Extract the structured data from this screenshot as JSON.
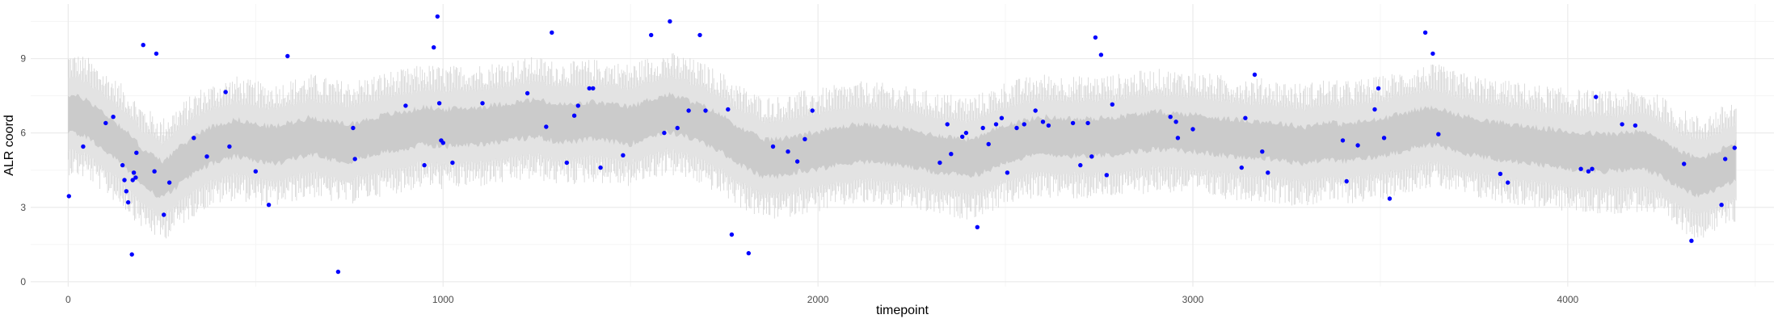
{
  "chart_data": {
    "type": "scatter",
    "xlabel": "timepoint",
    "ylabel": "ALR coord",
    "xlim": [
      -100,
      4550
    ],
    "ylim": [
      -0.2,
      11.2
    ],
    "x_ticks": [
      0,
      1000,
      2000,
      3000,
      4000
    ],
    "y_ticks": [
      0,
      3,
      6,
      9
    ],
    "grid": true,
    "colors": {
      "points": "#0000ff",
      "outer_band": "#e3e3e3",
      "inner_band": "#cbcbcb",
      "raw_band": "#d3d3d3",
      "grid_major": "#ebebeb",
      "grid_minor": "#f5f5f5"
    },
    "band_center": [
      [
        0,
        6.8
      ],
      [
        50,
        6.6
      ],
      [
        100,
        6.0
      ],
      [
        150,
        5.4
      ],
      [
        200,
        4.6
      ],
      [
        250,
        4.1
      ],
      [
        300,
        4.7
      ],
      [
        350,
        5.3
      ],
      [
        400,
        5.6
      ],
      [
        450,
        5.8
      ],
      [
        500,
        5.6
      ],
      [
        550,
        5.5
      ],
      [
        600,
        5.7
      ],
      [
        650,
        5.9
      ],
      [
        700,
        5.7
      ],
      [
        750,
        5.6
      ],
      [
        800,
        5.8
      ],
      [
        850,
        6.0
      ],
      [
        900,
        6.1
      ],
      [
        950,
        6.3
      ],
      [
        1000,
        6.2
      ],
      [
        1100,
        6.3
      ],
      [
        1200,
        6.5
      ],
      [
        1250,
        6.6
      ],
      [
        1300,
        6.4
      ],
      [
        1350,
        6.4
      ],
      [
        1400,
        6.5
      ],
      [
        1450,
        6.4
      ],
      [
        1500,
        6.3
      ],
      [
        1550,
        6.6
      ],
      [
        1600,
        6.8
      ],
      [
        1650,
        6.6
      ],
      [
        1700,
        6.3
      ],
      [
        1750,
        5.9
      ],
      [
        1800,
        5.4
      ],
      [
        1850,
        5.0
      ],
      [
        1900,
        5.0
      ],
      [
        1950,
        5.2
      ],
      [
        2000,
        5.3
      ],
      [
        2100,
        5.6
      ],
      [
        2200,
        5.5
      ],
      [
        2300,
        5.2
      ],
      [
        2400,
        5.0
      ],
      [
        2450,
        5.2
      ],
      [
        2500,
        5.6
      ],
      [
        2600,
        5.9
      ],
      [
        2700,
        5.8
      ],
      [
        2800,
        5.9
      ],
      [
        2900,
        6.1
      ],
      [
        3000,
        6.0
      ],
      [
        3050,
        5.9
      ],
      [
        3100,
        5.8
      ],
      [
        3200,
        5.7
      ],
      [
        3300,
        5.5
      ],
      [
        3350,
        5.7
      ],
      [
        3400,
        5.6
      ],
      [
        3500,
        5.8
      ],
      [
        3600,
        6.2
      ],
      [
        3650,
        6.3
      ],
      [
        3700,
        6.0
      ],
      [
        3800,
        5.7
      ],
      [
        3900,
        5.5
      ],
      [
        4000,
        5.3
      ],
      [
        4100,
        5.2
      ],
      [
        4200,
        5.3
      ],
      [
        4250,
        5.0
      ],
      [
        4300,
        4.5
      ],
      [
        4350,
        4.2
      ],
      [
        4400,
        4.5
      ],
      [
        4450,
        4.9
      ]
    ],
    "inner_half_width": 0.75,
    "outer_half_width": 1.5,
    "points": [
      [
        2,
        3.45
      ],
      [
        40,
        5.45
      ],
      [
        100,
        6.4
      ],
      [
        120,
        6.65
      ],
      [
        145,
        4.7
      ],
      [
        150,
        4.1
      ],
      [
        155,
        3.65
      ],
      [
        160,
        3.2
      ],
      [
        170,
        1.1
      ],
      [
        172,
        4.1
      ],
      [
        175,
        4.4
      ],
      [
        180,
        4.2
      ],
      [
        182,
        5.2
      ],
      [
        200,
        9.55
      ],
      [
        230,
        4.45
      ],
      [
        235,
        9.2
      ],
      [
        255,
        2.7
      ],
      [
        270,
        4.0
      ],
      [
        335,
        5.8
      ],
      [
        370,
        5.05
      ],
      [
        420,
        7.65
      ],
      [
        430,
        5.45
      ],
      [
        500,
        4.45
      ],
      [
        535,
        3.1
      ],
      [
        585,
        9.1
      ],
      [
        720,
        0.4
      ],
      [
        760,
        6.2
      ],
      [
        765,
        4.95
      ],
      [
        900,
        7.1
      ],
      [
        950,
        4.7
      ],
      [
        975,
        9.45
      ],
      [
        985,
        10.7
      ],
      [
        990,
        7.2
      ],
      [
        995,
        5.7
      ],
      [
        1000,
        5.6
      ],
      [
        1025,
        4.8
      ],
      [
        1105,
        7.2
      ],
      [
        1225,
        7.6
      ],
      [
        1275,
        6.25
      ],
      [
        1290,
        10.05
      ],
      [
        1330,
        4.8
      ],
      [
        1350,
        6.7
      ],
      [
        1360,
        7.1
      ],
      [
        1390,
        7.8
      ],
      [
        1400,
        7.8
      ],
      [
        1420,
        4.6
      ],
      [
        1480,
        5.1
      ],
      [
        1555,
        9.95
      ],
      [
        1590,
        6.0
      ],
      [
        1605,
        10.5
      ],
      [
        1625,
        6.2
      ],
      [
        1655,
        6.9
      ],
      [
        1685,
        9.95
      ],
      [
        1700,
        6.9
      ],
      [
        1760,
        6.95
      ],
      [
        1770,
        1.9
      ],
      [
        1815,
        1.15
      ],
      [
        1880,
        5.45
      ],
      [
        1920,
        5.25
      ],
      [
        1945,
        4.85
      ],
      [
        1965,
        5.75
      ],
      [
        1985,
        6.9
      ],
      [
        2325,
        4.8
      ],
      [
        2345,
        6.35
      ],
      [
        2355,
        5.15
      ],
      [
        2385,
        5.85
      ],
      [
        2395,
        6.0
      ],
      [
        2425,
        2.2
      ],
      [
        2440,
        6.2
      ],
      [
        2455,
        5.55
      ],
      [
        2475,
        6.35
      ],
      [
        2490,
        6.6
      ],
      [
        2505,
        4.4
      ],
      [
        2530,
        6.2
      ],
      [
        2550,
        6.35
      ],
      [
        2580,
        6.9
      ],
      [
        2600,
        6.45
      ],
      [
        2615,
        6.3
      ],
      [
        2680,
        6.4
      ],
      [
        2700,
        4.7
      ],
      [
        2720,
        6.4
      ],
      [
        2730,
        5.05
      ],
      [
        2740,
        9.85
      ],
      [
        2755,
        9.15
      ],
      [
        2770,
        4.3
      ],
      [
        2785,
        7.15
      ],
      [
        2940,
        6.65
      ],
      [
        2955,
        6.45
      ],
      [
        2960,
        5.8
      ],
      [
        3000,
        6.15
      ],
      [
        3130,
        4.6
      ],
      [
        3140,
        6.6
      ],
      [
        3165,
        8.35
      ],
      [
        3185,
        5.25
      ],
      [
        3200,
        4.4
      ],
      [
        3400,
        5.7
      ],
      [
        3410,
        4.05
      ],
      [
        3440,
        5.5
      ],
      [
        3485,
        6.95
      ],
      [
        3495,
        7.8
      ],
      [
        3510,
        5.8
      ],
      [
        3525,
        3.35
      ],
      [
        3620,
        10.05
      ],
      [
        3640,
        9.2
      ],
      [
        3655,
        5.95
      ],
      [
        3820,
        4.35
      ],
      [
        3840,
        4.0
      ],
      [
        4035,
        4.55
      ],
      [
        4055,
        4.45
      ],
      [
        4065,
        4.55
      ],
      [
        4075,
        7.45
      ],
      [
        4145,
        6.35
      ],
      [
        4180,
        6.3
      ],
      [
        4310,
        4.75
      ],
      [
        4330,
        1.65
      ],
      [
        4410,
        3.1
      ],
      [
        4420,
        4.95
      ],
      [
        4445,
        5.4
      ]
    ]
  }
}
